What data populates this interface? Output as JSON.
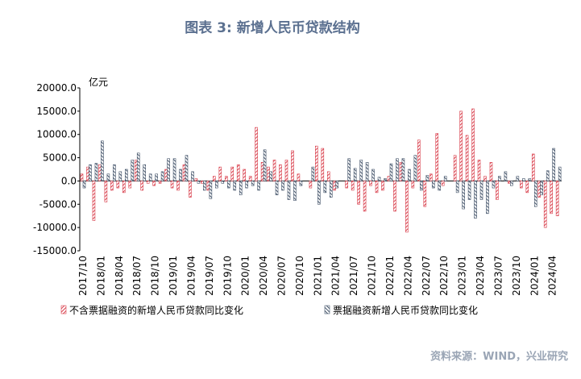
{
  "chart_data": {
    "type": "bar",
    "title": "图表 3:  新增人民币贷款结构",
    "y_label": "亿元",
    "source": "资料来源：WIND，兴业研究",
    "categories": [
      "2017/10",
      null,
      null,
      "2018/01",
      null,
      null,
      "2018/04",
      null,
      null,
      "2018/07",
      null,
      null,
      "2018/10",
      null,
      null,
      "2019/01",
      null,
      null,
      "2019/04",
      null,
      null,
      "2019/07",
      null,
      null,
      "2019/10",
      null,
      null,
      "2020/01",
      null,
      null,
      "2020/04",
      null,
      null,
      "2020/07",
      null,
      null,
      "2020/10",
      null,
      null,
      "2021/01",
      null,
      null,
      "2021/04",
      null,
      null,
      "2021/07",
      null,
      null,
      "2021/10",
      null,
      null,
      "2022/01",
      null,
      null,
      "2022/04",
      null,
      null,
      "2022/07",
      null,
      null,
      "2022/10",
      null,
      null,
      "2023/01",
      null,
      null,
      "2023/04",
      null,
      null,
      "2023/07",
      null,
      null,
      "2023/10",
      null,
      null,
      "2024/01",
      null,
      null,
      "2024/04",
      null
    ],
    "series": [
      {
        "name": "不含票据融资的新增人民币贷款同比变化",
        "color": "#d9414e",
        "values": [
          1500,
          3000,
          -8500,
          3500,
          -4500,
          -2000,
          -1500,
          -2500,
          -1500,
          4500,
          -2000,
          -500,
          -1000,
          -500,
          2500,
          -1500,
          -2000,
          3500,
          -3500,
          500,
          -500,
          -2000,
          1000,
          3000,
          1000,
          3000,
          3500,
          2500,
          1000,
          11500,
          4000,
          3000,
          4500,
          3500,
          4500,
          6500,
          1500,
          0,
          -1500,
          7500,
          7000,
          2000,
          -2000,
          0,
          -1500,
          -2000,
          -5000,
          -6500,
          -1000,
          -2500,
          -2000,
          1000,
          -6500,
          4000,
          -11000,
          -1500,
          8800,
          -5500,
          1500,
          10200,
          -1000,
          0,
          5500,
          15000,
          9800,
          15500,
          4500,
          1000,
          4000,
          -4000,
          0,
          -500,
          0,
          -1500,
          -2500,
          5800,
          -3500,
          -10000,
          -7000,
          -7500
        ]
      },
      {
        "name": "票据融资新增人民币贷款同比变化",
        "color": "#44546a",
        "values": [
          -1500,
          3500,
          3800,
          8600,
          1500,
          3500,
          2000,
          2500,
          4500,
          6000,
          3500,
          1500,
          1500,
          2000,
          4800,
          4800,
          2500,
          5500,
          2000,
          -500,
          -2000,
          -3800,
          -1500,
          -500,
          -1500,
          -2000,
          -3000,
          -1500,
          -1000,
          -2000,
          6700,
          2000,
          -3000,
          -2000,
          -4000,
          -4200,
          -1000,
          0,
          3000,
          -5000,
          -2500,
          -3500,
          -1500,
          0,
          4800,
          2700,
          4500,
          4000,
          2500,
          800,
          500,
          3700,
          4800,
          4800,
          2500,
          5500,
          -2000,
          1200,
          -1500,
          -2000,
          1000,
          0,
          -2500,
          -6000,
          -4000,
          -8000,
          -4000,
          -7000,
          -1500,
          1000,
          2000,
          -1000,
          1000,
          500,
          500,
          -5500,
          -3000,
          2200,
          7000,
          3000
        ]
      }
    ],
    "ylim": [
      -15000,
      20000
    ],
    "yticks": [
      {
        "value": -15000,
        "label": "-15000.0"
      },
      {
        "value": -10000,
        "label": "-10000.0"
      },
      {
        "value": -5000,
        "label": "-5000.0"
      },
      {
        "value": 0,
        "label": "0.0"
      },
      {
        "value": 5000,
        "label": "5000.0"
      },
      {
        "value": 10000,
        "label": "10000.0"
      },
      {
        "value": 15000,
        "label": "15000.0"
      },
      {
        "value": 20000,
        "label": "20000.0"
      }
    ]
  }
}
